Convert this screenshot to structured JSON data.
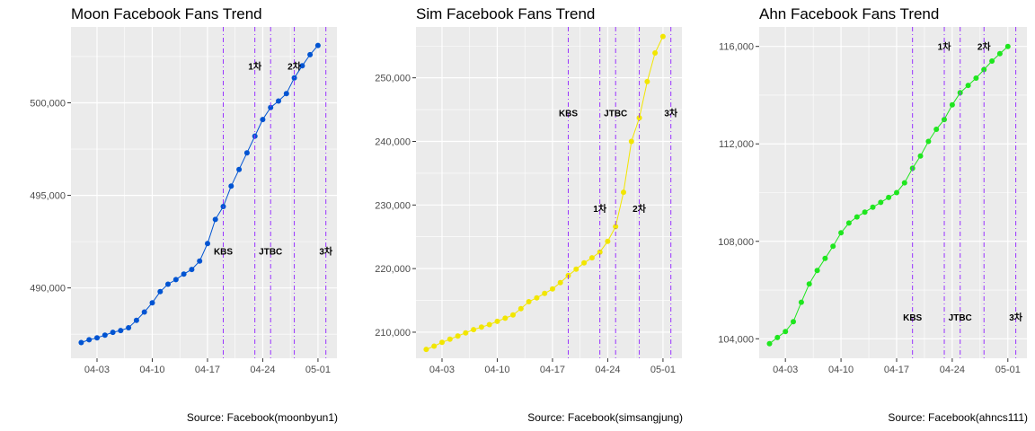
{
  "chart_data": [
    {
      "type": "line",
      "title": "Moon Facebook Fans Trend",
      "caption": "Source: Facebook(moonbyun1)",
      "xlabel": "",
      "ylabel": "",
      "color": "#0054d2",
      "x_date_range": [
        "04-01",
        "05-01"
      ],
      "xticks": [
        "04-03",
        "04-10",
        "04-17",
        "04-24",
        "05-01"
      ],
      "yticks": [
        "490,000",
        "495,000",
        "500,000"
      ],
      "ylim": [
        486200,
        504100
      ],
      "x_dates": [
        "04-01",
        "04-02",
        "04-03",
        "04-04",
        "04-05",
        "04-06",
        "04-07",
        "04-08",
        "04-09",
        "04-10",
        "04-11",
        "04-12",
        "04-13",
        "04-14",
        "04-15",
        "04-16",
        "04-17",
        "04-18",
        "04-19",
        "04-20",
        "04-21",
        "04-22",
        "04-23",
        "04-24",
        "04-25",
        "04-26",
        "04-27",
        "04-28",
        "04-29",
        "04-30",
        "05-01"
      ],
      "values": [
        487050,
        487200,
        487300,
        487450,
        487600,
        487700,
        487850,
        488250,
        488700,
        489200,
        489800,
        490200,
        490450,
        490750,
        491000,
        491450,
        492400,
        493700,
        494400,
        495500,
        496400,
        497300,
        498200,
        499100,
        499750,
        500100,
        500500,
        501350,
        502000,
        502600,
        503100
      ],
      "event_lines": [
        {
          "date": "04-19",
          "label": "KBS",
          "label_y": 492000
        },
        {
          "date": "04-23",
          "label": "1차",
          "label_y": 502000
        },
        {
          "date": "04-25",
          "label": "JTBC",
          "label_y": 492000
        },
        {
          "date": "04-28",
          "label": "2차",
          "label_y": 502000
        },
        {
          "date": "05-02",
          "label": "3차",
          "label_y": 492000
        }
      ],
      "grid": true,
      "legend": "none"
    },
    {
      "type": "line",
      "title": "Sim Facebook Fans Trend",
      "caption": "Source: Facebook(simsangjung)",
      "xlabel": "",
      "ylabel": "",
      "color": "#f2e600",
      "x_date_range": [
        "04-01",
        "05-01"
      ],
      "xticks": [
        "04-03",
        "04-10",
        "04-17",
        "04-24",
        "05-01"
      ],
      "yticks": [
        "210,000",
        "220,000",
        "230,000",
        "240,000",
        "250,000"
      ],
      "ylim": [
        205900,
        258000
      ],
      "x_dates": [
        "04-01",
        "04-02",
        "04-03",
        "04-04",
        "04-05",
        "04-06",
        "04-07",
        "04-08",
        "04-09",
        "04-10",
        "04-11",
        "04-12",
        "04-13",
        "04-14",
        "04-15",
        "04-16",
        "04-17",
        "04-18",
        "04-19",
        "04-20",
        "04-21",
        "04-22",
        "04-23",
        "04-24",
        "04-25",
        "04-26",
        "04-27",
        "04-28",
        "04-29",
        "04-30",
        "05-01"
      ],
      "values": [
        207300,
        207800,
        208400,
        208900,
        209400,
        209900,
        210400,
        210800,
        211200,
        211700,
        212200,
        212700,
        213700,
        214800,
        215400,
        216100,
        216800,
        217800,
        218900,
        219900,
        220900,
        221700,
        222600,
        224300,
        226600,
        232000,
        240000,
        243700,
        249400,
        253900,
        256500
      ],
      "event_lines": [
        {
          "date": "04-19",
          "label": "KBS",
          "label_y": 244500
        },
        {
          "date": "04-23",
          "label": "1차",
          "label_y": 229500
        },
        {
          "date": "04-25",
          "label": "JTBC",
          "label_y": 244500
        },
        {
          "date": "04-28",
          "label": "2차",
          "label_y": 229500
        },
        {
          "date": "05-02",
          "label": "3차",
          "label_y": 244500
        }
      ],
      "grid": true,
      "legend": "none"
    },
    {
      "type": "line",
      "title": "Ahn Facebook Fans Trend",
      "caption": "Source: Facebook(ahncs111)",
      "xlabel": "",
      "ylabel": "",
      "color": "#1ee61e",
      "x_date_range": [
        "04-01",
        "05-01"
      ],
      "xticks": [
        "04-03",
        "04-10",
        "04-17",
        "04-24",
        "05-01"
      ],
      "yticks": [
        "104,000",
        "108,000",
        "112,000",
        "116,000"
      ],
      "ylim": [
        103200,
        116800
      ],
      "x_dates": [
        "04-01",
        "04-02",
        "04-03",
        "04-04",
        "04-05",
        "04-06",
        "04-07",
        "04-08",
        "04-09",
        "04-10",
        "04-11",
        "04-12",
        "04-13",
        "04-14",
        "04-15",
        "04-16",
        "04-17",
        "04-18",
        "04-19",
        "04-20",
        "04-21",
        "04-22",
        "04-23",
        "04-24",
        "04-25",
        "04-26",
        "04-27",
        "04-28",
        "04-29",
        "04-30",
        "05-01"
      ],
      "values": [
        103800,
        104050,
        104300,
        104700,
        105500,
        106250,
        106800,
        107300,
        107800,
        108350,
        108750,
        109000,
        109200,
        109400,
        109600,
        109800,
        110000,
        110400,
        111000,
        111500,
        112100,
        112600,
        113000,
        113600,
        114100,
        114400,
        114700,
        115050,
        115400,
        115700,
        116000
      ],
      "event_lines": [
        {
          "date": "04-19",
          "label": "KBS",
          "label_y": 104900
        },
        {
          "date": "04-23",
          "label": "1차",
          "label_y": 116000
        },
        {
          "date": "04-25",
          "label": "JTBC",
          "label_y": 104900
        },
        {
          "date": "04-28",
          "label": "2차",
          "label_y": 116000
        },
        {
          "date": "05-02",
          "label": "3차",
          "label_y": 104900
        }
      ],
      "grid": true,
      "legend": "none"
    }
  ],
  "style": {
    "panel_bg": "#ebebeb",
    "grid_color": "#ffffff",
    "event_line_color": "#9933ff",
    "axis_text_color": "#4d4d4d"
  }
}
